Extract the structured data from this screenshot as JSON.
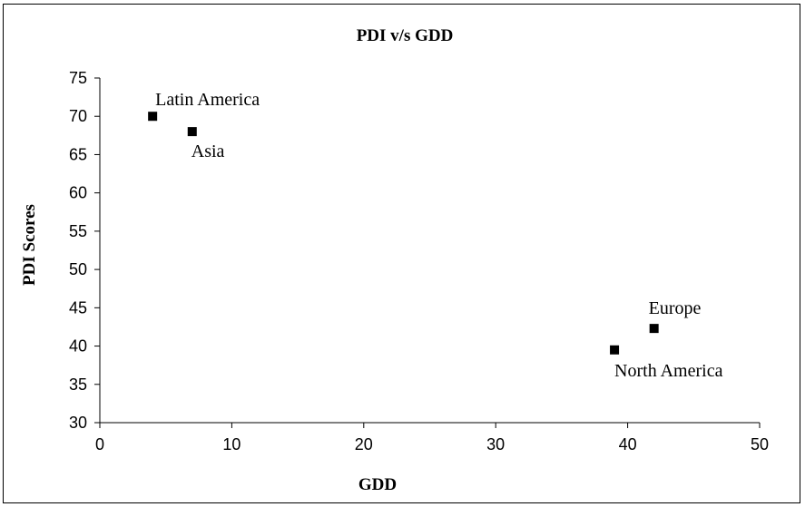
{
  "chart_data": {
    "type": "scatter",
    "title": "PDI v/s GDD",
    "xlabel": "GDD",
    "ylabel": "PDI Scores",
    "xlim": [
      0,
      50
    ],
    "ylim": [
      30,
      75
    ],
    "xticks": [
      "0",
      "10",
      "20",
      "30",
      "40",
      "50"
    ],
    "yticks": [
      "30",
      "35",
      "40",
      "45",
      "50",
      "55",
      "60",
      "65",
      "70",
      "75"
    ],
    "grid": false,
    "legend": "none",
    "marker": "square",
    "marker_color": "#000000",
    "points": [
      {
        "x": 4,
        "y": 70,
        "label": "Latin America",
        "label_pos": "above-right"
      },
      {
        "x": 7,
        "y": 68,
        "label": "Asia",
        "label_pos": "below"
      },
      {
        "x": 42,
        "y": 42.3,
        "label": "Europe",
        "label_pos": "above"
      },
      {
        "x": 39,
        "y": 39.5,
        "label": "North America",
        "label_pos": "below-right"
      }
    ]
  }
}
